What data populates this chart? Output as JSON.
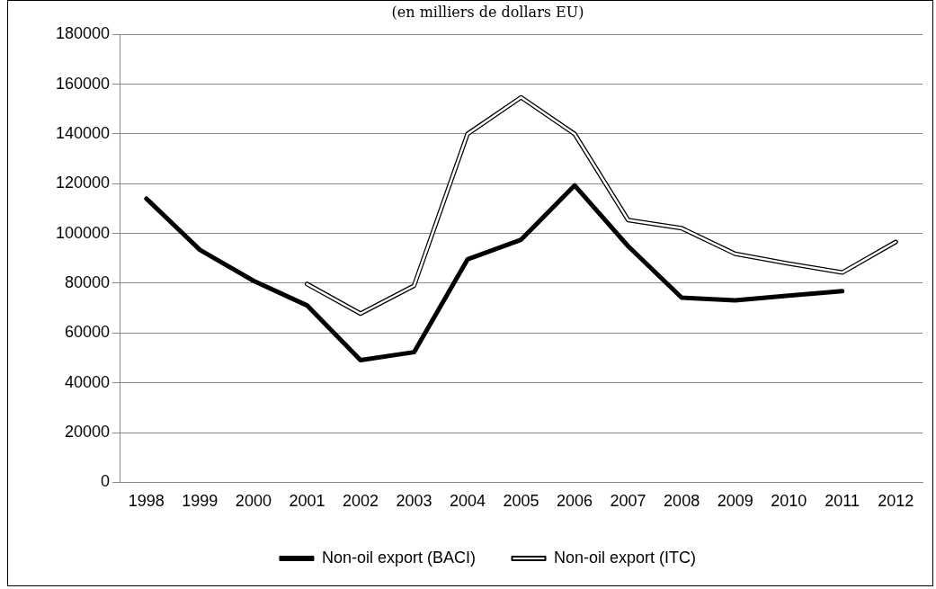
{
  "chart_data": {
    "type": "line",
    "subtitle": "(en milliers de dollars EU)",
    "categories": [
      "1998",
      "1999",
      "2000",
      "2001",
      "2002",
      "2003",
      "2004",
      "2005",
      "2006",
      "2007",
      "2008",
      "2009",
      "2010",
      "2011",
      "2012"
    ],
    "series": [
      {
        "name": "Non-oil export (BACI)",
        "color": "#000000",
        "values": [
          114000,
          93400,
          81000,
          71100,
          49100,
          52300,
          89600,
          97500,
          119300,
          94900,
          74200,
          73100,
          75000,
          76800,
          null
        ]
      },
      {
        "name": "Non-oil export (ITC)",
        "color": "#000000",
        "values": [
          null,
          null,
          null,
          79700,
          67800,
          79000,
          140000,
          154700,
          140000,
          105400,
          102100,
          91800,
          87900,
          84300,
          96600
        ]
      }
    ],
    "ylim": [
      0,
      180000
    ],
    "yticks": [
      0,
      20000,
      40000,
      60000,
      80000,
      100000,
      120000,
      140000,
      160000,
      180000
    ],
    "grid": "y",
    "legend": "bottom",
    "marker": "none",
    "line_style": "solid"
  }
}
